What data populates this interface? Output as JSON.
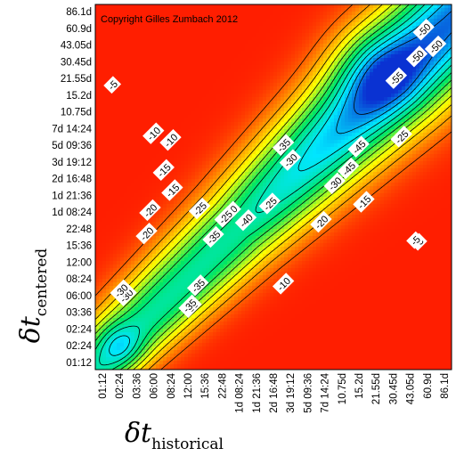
{
  "chart_data": {
    "type": "heatmap",
    "subtype": "contour",
    "annotation": "Copyright Gilles Zumbach 2012",
    "xlabel": {
      "symbol": "δt",
      "subscript": "historical"
    },
    "ylabel": {
      "symbol": "δt",
      "subscript": "centered"
    },
    "x_ticks": [
      "01:12",
      "02:24",
      "03:36",
      "06:00",
      "08:24",
      "12:00",
      "15:36",
      "22:48",
      "1d 08:24",
      "1d 21:36",
      "2d 16:48",
      "3d 19:12",
      "5d 09:36",
      "7d 14:24",
      "10.75d",
      "15.2d",
      "21.55d",
      "30.45d",
      "43.05d",
      "60.9d",
      "86.1d"
    ],
    "y_ticks": [
      "01:12",
      "02:24",
      "02:24",
      "03:36",
      "06:00",
      "08:24",
      "12:00",
      "15:36",
      "22:48",
      "1d 08:24",
      "1d 21:36",
      "2d 16:48",
      "3d 19:12",
      "5d 09:36",
      "7d 14:24",
      "10.75d",
      "15.2d",
      "21.55d",
      "30.45d",
      "43.05d",
      "60.9d",
      "86.1d"
    ],
    "contour_levels": [
      -5,
      -10,
      -15,
      -20,
      -25,
      -30,
      -35,
      -40,
      -45,
      -50,
      -55
    ],
    "contour_labels": [
      "-5",
      "-10",
      "-15",
      "-20",
      "-25",
      "-30",
      "-35",
      "-40",
      "-45",
      "-50",
      "-55",
      "-50",
      "-35",
      "-35",
      "-30",
      "-25",
      "-20",
      "-15",
      "-10",
      "-5",
      "-10",
      "-15",
      "-20",
      "-25",
      "-30",
      "-35",
      "-40",
      "-45",
      "-25",
      "-50",
      "-35",
      "-5",
      "-30",
      "-35"
    ],
    "colorscale": {
      "low": "#0a32d2",
      "mid_low": "#00e6ff",
      "mid": "#00e664",
      "mid_high": "#ffff00",
      "high": "#ff1e00"
    },
    "grid": false,
    "legend": "none"
  }
}
